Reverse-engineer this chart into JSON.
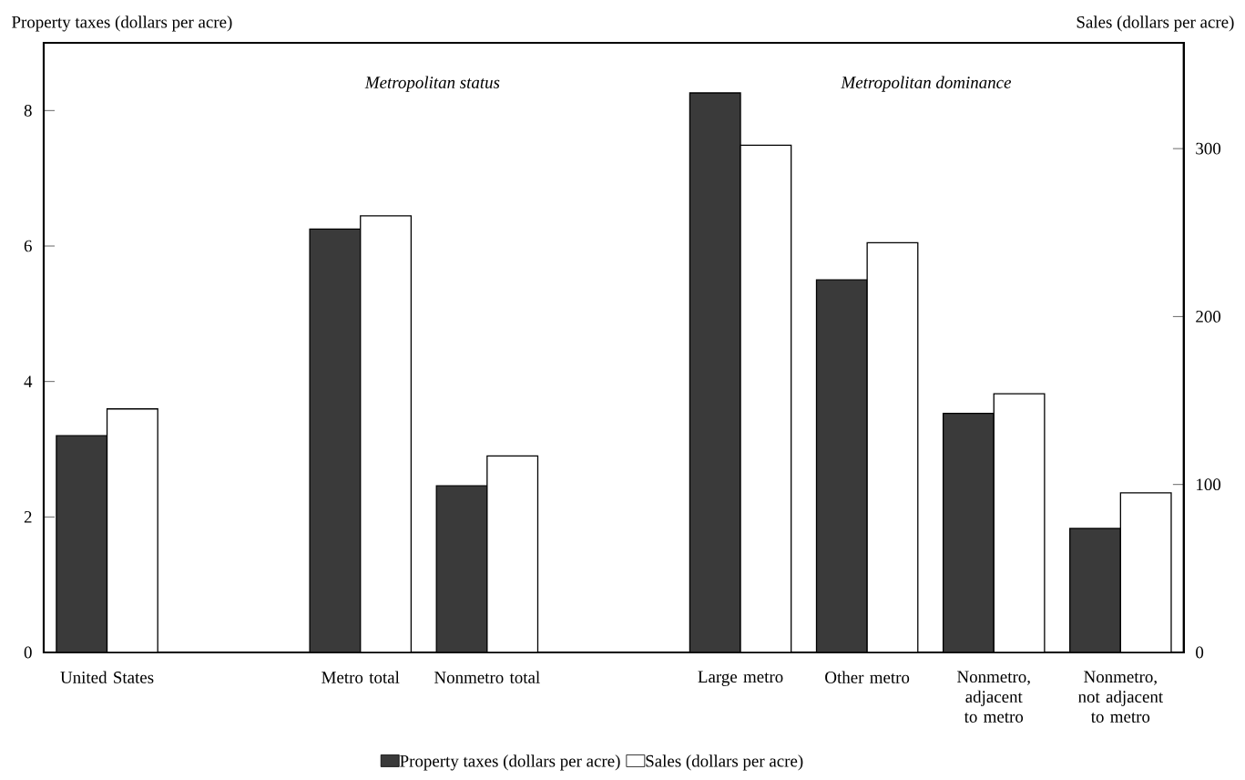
{
  "chart_data": {
    "type": "bar",
    "ylabel": "Property taxes (dollars per acre)",
    "y2label": "Sales (dollars per acre)",
    "categories": [
      "United States",
      null,
      "Metro total",
      "Nonmetro total",
      null,
      "Large metro",
      "Other metro",
      "Nonmetro, adjacent to metro",
      "Nonmetro, not adjacent to metro"
    ],
    "series": [
      {
        "name": "Property taxes (dollars per acre)",
        "color": "#3a3a3a",
        "values": [
          3.2,
          null,
          6.25,
          2.46,
          null,
          8.26,
          5.5,
          3.53,
          1.83
        ]
      },
      {
        "name": "Sales (dollars per acre)",
        "color": "#ffffff",
        "axis": "y2",
        "values": [
          145,
          null,
          260,
          117,
          null,
          302,
          244,
          154,
          95
        ]
      }
    ],
    "ylim": [
      0,
      9
    ],
    "yticks": [
      0,
      2,
      4,
      6,
      8
    ],
    "y2lim": [
      0,
      363
    ],
    "y2ticks": [
      0,
      100,
      200,
      300
    ],
    "annotations": [
      "Metropolitan status",
      "Metropolitan dominance"
    ],
    "legend": "bottom"
  }
}
